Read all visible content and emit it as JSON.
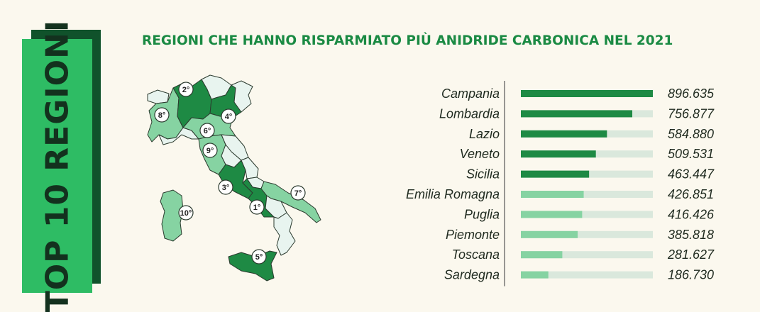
{
  "banner": {
    "text": "TOP 10 REGIONI"
  },
  "title": "REGIONI CHE HANNO RISPARMIATO PIÙ ANIDRIDE CARBONICA NEL 2021",
  "colors": {
    "dark": "#1e8a44",
    "light": "#86d3a2",
    "track": "#dae8dc",
    "banner": "#2ebc64",
    "banner_shadow": "#10522b",
    "map_pale": "#e8f4ef"
  },
  "map": {
    "badges": [
      {
        "label": "1°",
        "region": "Campania"
      },
      {
        "label": "2°",
        "region": "Lombardia"
      },
      {
        "label": "3°",
        "region": "Lazio"
      },
      {
        "label": "4°",
        "region": "Veneto"
      },
      {
        "label": "5°",
        "region": "Sicilia"
      },
      {
        "label": "6°",
        "region": "Emilia Romagna"
      },
      {
        "label": "7°",
        "region": "Puglia"
      },
      {
        "label": "8°",
        "region": "Piemonte"
      },
      {
        "label": "9°",
        "region": "Toscana"
      },
      {
        "label": "10°",
        "region": "Sardegna"
      }
    ]
  },
  "chart_data": {
    "type": "bar",
    "orientation": "horizontal",
    "categories": [
      "Campania",
      "Lombardia",
      "Lazio",
      "Veneto",
      "Sicilia",
      "Emilia Romagna",
      "Puglia",
      "Piemonte",
      "Toscana",
      "Sardegna"
    ],
    "values": [
      896635,
      756877,
      584880,
      509531,
      463447,
      426851,
      416426,
      385818,
      281627,
      186730
    ],
    "value_labels": [
      "896.635",
      "756.877",
      "584.880",
      "509.531",
      "463.447",
      "426.851",
      "416.426",
      "385.818",
      "281.627",
      "186.730"
    ],
    "highlight_top": 5,
    "xlim": [
      0,
      896635
    ]
  }
}
